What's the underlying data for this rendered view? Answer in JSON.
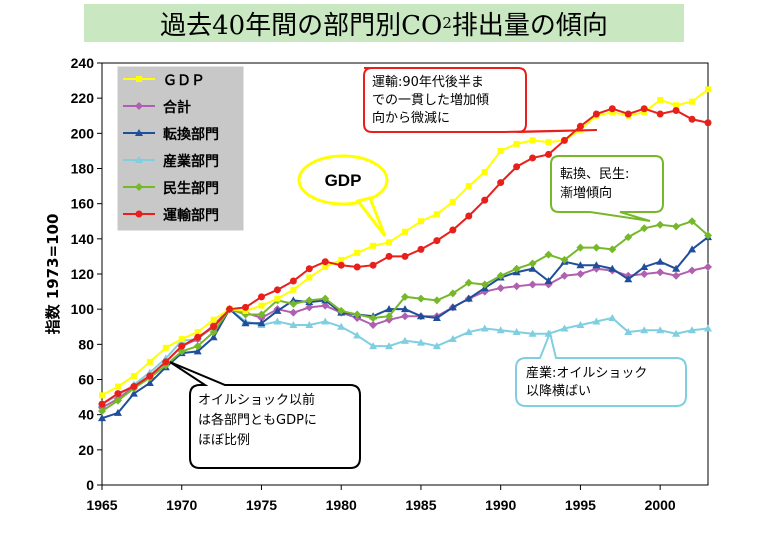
{
  "title": {
    "prefix": "過去40年間の部門別CO",
    "subscript": "2",
    "suffix": "排出量の傾向"
  },
  "colors": {
    "gdp": "#ffff00",
    "total": "#b060b0",
    "conversion": "#1f4e9a",
    "industry": "#7fcfe0",
    "residential": "#76b82a",
    "transport": "#e8201c",
    "title_bg": "#c9e8c2"
  },
  "chart_data": {
    "type": "line",
    "ylabel": "指数 1973=100",
    "ylim": [
      0,
      240
    ],
    "y_ticks": [
      0,
      20,
      40,
      60,
      80,
      100,
      120,
      140,
      160,
      180,
      200,
      220,
      240
    ],
    "xlim": [
      1965,
      2003
    ],
    "x_ticks": [
      1965,
      1970,
      1975,
      1980,
      1985,
      1990,
      1995,
      2000
    ],
    "grid": false,
    "legend_position": "top-left",
    "x": [
      1965,
      1966,
      1967,
      1968,
      1969,
      1970,
      1971,
      1972,
      1973,
      1974,
      1975,
      1976,
      1977,
      1978,
      1979,
      1980,
      1981,
      1982,
      1983,
      1984,
      1985,
      1986,
      1987,
      1988,
      1989,
      1990,
      1991,
      1992,
      1993,
      1994,
      1995,
      1996,
      1997,
      1998,
      1999,
      2000,
      2001,
      2002,
      2003
    ],
    "series": [
      {
        "name": "ＧＤＰ",
        "key": "gdp",
        "values": [
          51,
          56,
          62,
          70,
          78,
          83,
          87,
          94,
          100,
          99,
          102,
          106,
          111,
          118,
          124,
          128,
          132,
          136,
          138,
          144,
          150,
          154,
          161,
          170,
          178,
          190,
          194,
          196,
          195,
          196,
          202,
          210,
          212,
          210,
          212,
          219,
          216,
          218,
          225
        ]
      },
      {
        "name": "合計",
        "key": "total",
        "values": [
          44,
          49,
          56,
          62,
          70,
          79,
          83,
          91,
          100,
          98,
          95,
          100,
          98,
          101,
          102,
          98,
          95,
          91,
          94,
          96,
          96,
          96,
          101,
          106,
          110,
          112,
          113,
          114,
          114,
          119,
          120,
          123,
          122,
          119,
          120,
          121,
          119,
          122,
          124
        ]
      },
      {
        "name": "転換部門",
        "key": "conversion",
        "values": [
          38,
          41,
          52,
          58,
          67,
          75,
          76,
          84,
          100,
          92,
          92,
          99,
          105,
          104,
          105,
          98,
          97,
          96,
          100,
          100,
          96,
          95,
          101,
          106,
          112,
          118,
          121,
          123,
          116,
          127,
          125,
          125,
          123,
          117,
          124,
          127,
          123,
          134,
          141
        ]
      },
      {
        "name": "産業部門",
        "key": "industry",
        "values": [
          46,
          51,
          57,
          64,
          72,
          82,
          83,
          90,
          100,
          93,
          91,
          93,
          91,
          91,
          93,
          90,
          85,
          79,
          79,
          82,
          81,
          79,
          83,
          87,
          89,
          88,
          87,
          86,
          86,
          89,
          91,
          93,
          95,
          87,
          88,
          88,
          86,
          88,
          89
        ]
      },
      {
        "name": "民生部門",
        "key": "residential",
        "values": [
          42,
          48,
          55,
          61,
          68,
          76,
          79,
          87,
          100,
          97,
          97,
          105,
          103,
          105,
          106,
          99,
          97,
          95,
          96,
          107,
          106,
          105,
          109,
          115,
          114,
          119,
          123,
          126,
          131,
          128,
          135,
          135,
          134,
          141,
          146,
          148,
          147,
          150,
          142
        ]
      },
      {
        "name": "運輸部門",
        "key": "transport",
        "values": [
          46,
          52,
          56,
          62,
          70,
          79,
          84,
          90,
          100,
          101,
          107,
          111,
          116,
          123,
          127,
          125,
          124,
          125,
          130,
          130,
          134,
          139,
          145,
          153,
          162,
          172,
          181,
          186,
          188,
          196,
          204,
          211,
          214,
          211,
          214,
          211,
          213,
          208,
          206
        ]
      }
    ]
  },
  "annotations": {
    "transport": [
      "運輸:90年代後半ま",
      "での一貫した増加傾",
      "向から微減に"
    ],
    "residential": [
      "転換、民生:",
      "漸増傾向"
    ],
    "gdp": [
      "GDP"
    ],
    "industry": [
      "産業:オイルショック",
      "以降横ばい"
    ],
    "oil": [
      "オイルショック以前",
      "は各部門ともGDPに",
      "ほぼ比例"
    ]
  }
}
